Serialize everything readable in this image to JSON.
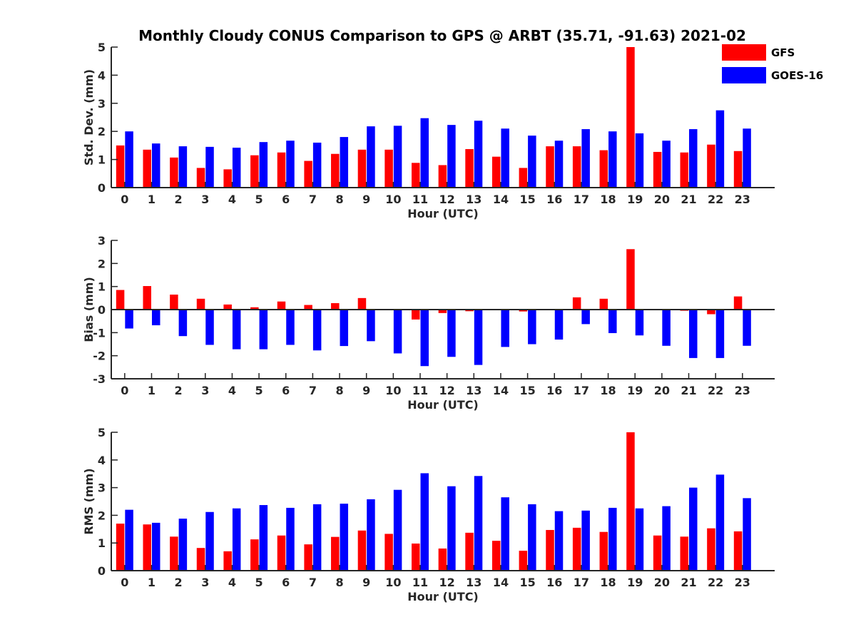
{
  "figure": {
    "title": "Monthly Cloudy CONUS Comparison to GPS @ ARBT (35.71, -91.63) 2021-02"
  },
  "legend": {
    "placement": "top-right",
    "items": [
      {
        "label": "GFS",
        "color": "#ff0000"
      },
      {
        "label": "GOES-16",
        "color": "#0000ff"
      }
    ]
  },
  "chart_data": [
    {
      "type": "bar",
      "xlabel": "Hour (UTC)",
      "ylabel": "Std. Dev. (mm)",
      "ylim": [
        0,
        5
      ],
      "yticks": [
        0,
        1,
        2,
        3,
        4,
        5
      ],
      "categories": [
        "0",
        "1",
        "2",
        "3",
        "4",
        "5",
        "6",
        "7",
        "8",
        "9",
        "10",
        "11",
        "12",
        "13",
        "14",
        "15",
        "16",
        "17",
        "18",
        "19",
        "20",
        "21",
        "22",
        "23"
      ],
      "series": [
        {
          "name": "GFS",
          "color": "#ff0000",
          "values": [
            1.5,
            1.35,
            1.07,
            0.7,
            0.65,
            1.15,
            1.25,
            0.95,
            1.2,
            1.35,
            1.35,
            0.88,
            0.8,
            1.37,
            1.1,
            0.7,
            1.47,
            1.47,
            1.33,
            5.0,
            1.27,
            1.25,
            1.53,
            1.3
          ]
        },
        {
          "name": "GOES-16",
          "color": "#0000ff",
          "values": [
            2.0,
            1.57,
            1.47,
            1.45,
            1.42,
            1.62,
            1.67,
            1.6,
            1.8,
            2.18,
            2.2,
            2.47,
            2.23,
            2.38,
            2.1,
            1.85,
            1.67,
            2.08,
            2.0,
            1.93,
            1.67,
            2.08,
            2.75,
            2.1
          ]
        }
      ]
    },
    {
      "type": "bar",
      "xlabel": "Hour (UTC)",
      "ylabel": "Bias (mm)",
      "ylim": [
        -3,
        3
      ],
      "yticks": [
        -3,
        -2,
        -1,
        0,
        1,
        2,
        3
      ],
      "categories": [
        "0",
        "1",
        "2",
        "3",
        "4",
        "5",
        "6",
        "7",
        "8",
        "9",
        "10",
        "11",
        "12",
        "13",
        "14",
        "15",
        "16",
        "17",
        "18",
        "19",
        "20",
        "21",
        "22",
        "23"
      ],
      "series": [
        {
          "name": "GFS",
          "color": "#ff0000",
          "values": [
            0.85,
            1.02,
            0.65,
            0.47,
            0.22,
            0.1,
            0.35,
            0.2,
            0.28,
            0.5,
            0.0,
            -0.43,
            -0.15,
            -0.07,
            0.0,
            -0.08,
            0.0,
            0.53,
            0.47,
            2.62,
            0.0,
            -0.05,
            -0.2,
            0.57
          ]
        },
        {
          "name": "GOES-16",
          "color": "#0000ff",
          "values": [
            -0.82,
            -0.68,
            -1.15,
            -1.53,
            -1.72,
            -1.72,
            -1.53,
            -1.77,
            -1.58,
            -1.37,
            -1.9,
            -2.45,
            -2.05,
            -2.4,
            -1.62,
            -1.5,
            -1.3,
            -0.63,
            -1.02,
            -1.12,
            -1.57,
            -2.1,
            -2.1,
            -1.57
          ]
        }
      ]
    },
    {
      "type": "bar",
      "xlabel": "Hour (UTC)",
      "ylabel": "RMS (mm)",
      "ylim": [
        0,
        5
      ],
      "yticks": [
        0,
        1,
        2,
        3,
        4,
        5
      ],
      "categories": [
        "0",
        "1",
        "2",
        "3",
        "4",
        "5",
        "6",
        "7",
        "8",
        "9",
        "10",
        "11",
        "12",
        "13",
        "14",
        "15",
        "16",
        "17",
        "18",
        "19",
        "20",
        "21",
        "22",
        "23"
      ],
      "series": [
        {
          "name": "GFS",
          "color": "#ff0000",
          "values": [
            1.7,
            1.67,
            1.23,
            0.82,
            0.7,
            1.13,
            1.27,
            0.95,
            1.22,
            1.45,
            1.33,
            0.98,
            0.8,
            1.37,
            1.08,
            0.72,
            1.47,
            1.55,
            1.4,
            5.0,
            1.27,
            1.23,
            1.53,
            1.42
          ]
        },
        {
          "name": "GOES-16",
          "color": "#0000ff",
          "values": [
            2.2,
            1.73,
            1.88,
            2.12,
            2.25,
            2.37,
            2.27,
            2.4,
            2.42,
            2.58,
            2.92,
            3.52,
            3.05,
            3.42,
            2.65,
            2.4,
            2.15,
            2.17,
            2.27,
            2.25,
            2.33,
            3.0,
            3.47,
            2.62
          ]
        }
      ]
    }
  ]
}
